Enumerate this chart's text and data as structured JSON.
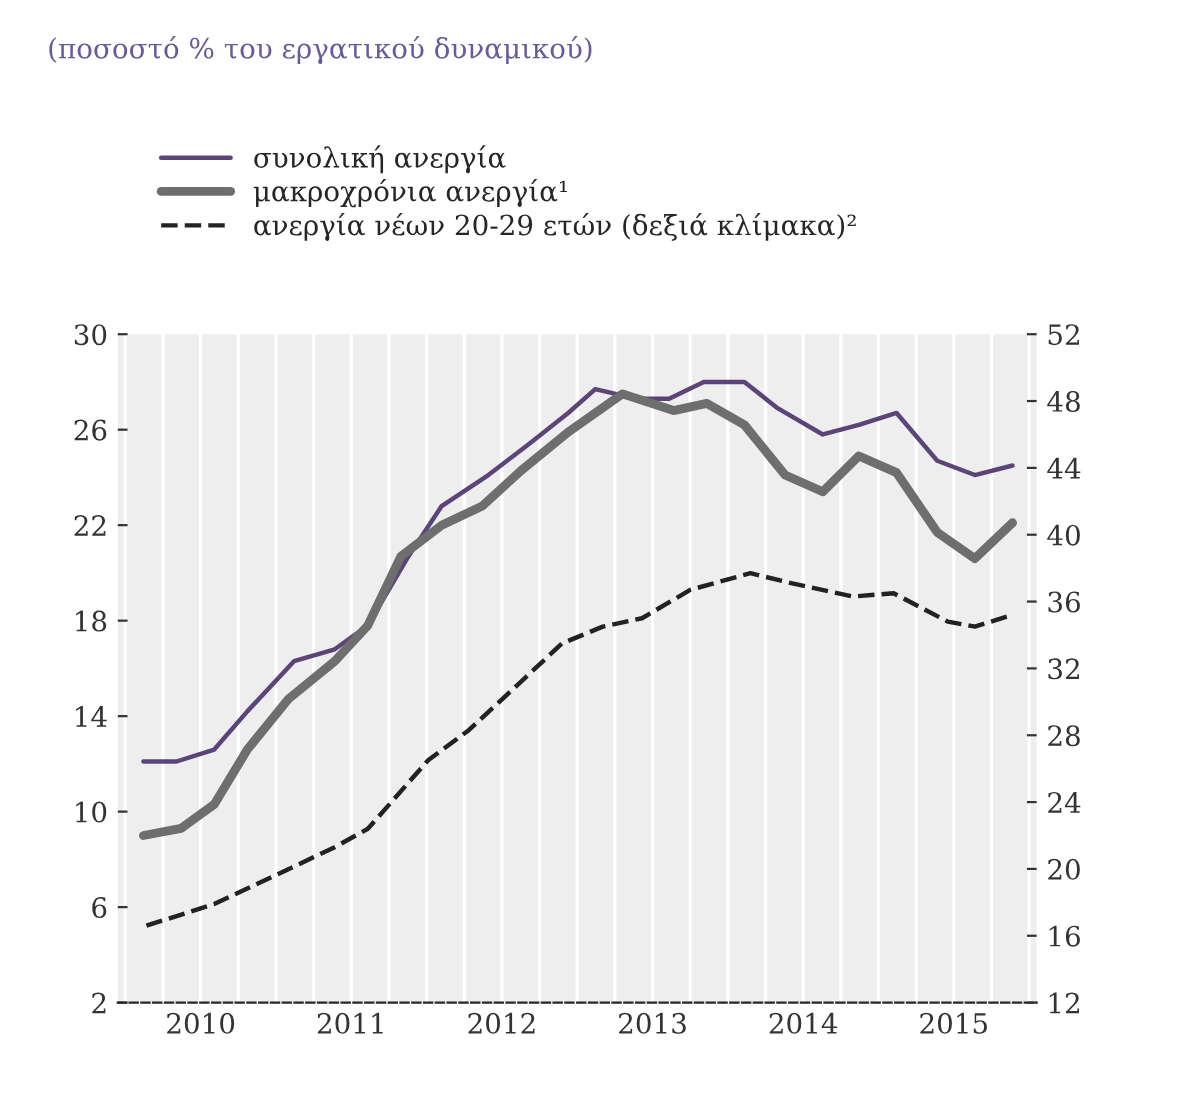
{
  "chart_data": {
    "type": "line",
    "title": "(ποσοστό % του εργατικού δυναμικού)",
    "xlim": [
      2009.95,
      2016.05
    ],
    "xticks": [
      {
        "value": 2010.0,
        "label": null
      },
      {
        "value": 2010.25,
        "label": null
      },
      {
        "value": 2010.5,
        "label": "2010"
      },
      {
        "value": 2010.75,
        "label": null
      },
      {
        "value": 2011.0,
        "label": null
      },
      {
        "value": 2011.25,
        "label": null
      },
      {
        "value": 2011.5,
        "label": "2011"
      },
      {
        "value": 2011.75,
        "label": null
      },
      {
        "value": 2012.0,
        "label": null
      },
      {
        "value": 2012.25,
        "label": null
      },
      {
        "value": 2012.5,
        "label": "2012"
      },
      {
        "value": 2012.75,
        "label": null
      },
      {
        "value": 2013.0,
        "label": null
      },
      {
        "value": 2013.25,
        "label": null
      },
      {
        "value": 2013.5,
        "label": "2013"
      },
      {
        "value": 2013.75,
        "label": null
      },
      {
        "value": 2014.0,
        "label": null
      },
      {
        "value": 2014.25,
        "label": null
      },
      {
        "value": 2014.5,
        "label": "2014"
      },
      {
        "value": 2014.75,
        "label": null
      },
      {
        "value": 2015.0,
        "label": null
      },
      {
        "value": 2015.25,
        "label": null
      },
      {
        "value": 2015.5,
        "label": "2015"
      },
      {
        "value": 2015.75,
        "label": null
      },
      {
        "value": 2016.0,
        "label": null
      }
    ],
    "ylim": [
      2,
      30
    ],
    "yticks": [
      2,
      6,
      10,
      14,
      18,
      22,
      26,
      30
    ],
    "y2lim": [
      12,
      52
    ],
    "y2ticks": [
      12,
      16,
      20,
      24,
      28,
      32,
      36,
      40,
      44,
      48,
      52
    ],
    "grid": "x",
    "legend": "top left",
    "line_style": "solid",
    "series": [
      {
        "name": "συνολική ανεργία",
        "color": "#5b4478",
        "x": [
          2010.12,
          2010.34,
          2010.59,
          2010.81,
          2011.12,
          2011.39,
          2011.61,
          2011.88,
          2012.1,
          2012.41,
          2012.68,
          2012.94,
          2013.12,
          2013.39,
          2013.61,
          2013.84,
          2014.11,
          2014.33,
          2014.63,
          2014.87,
          2015.12,
          2015.39,
          2015.64,
          2015.89
        ],
        "values": [
          12.1,
          12.1,
          12.6,
          14.2,
          16.3,
          16.8,
          17.8,
          20.7,
          22.8,
          24.1,
          25.4,
          26.7,
          27.7,
          27.3,
          27.3,
          28.0,
          28.0,
          26.9,
          25.8,
          26.2,
          26.7,
          24.7,
          24.1,
          24.5
        ]
      },
      {
        "name": "μακροχρόνια ανεργία¹",
        "color": "#6e6e6e",
        "x": [
          2010.12,
          2010.37,
          2010.59,
          2010.81,
          2011.08,
          2011.39,
          2011.61,
          2011.83,
          2012.1,
          2012.37,
          2012.63,
          2012.94,
          2013.3,
          2013.64,
          2013.86,
          2014.11,
          2014.38,
          2014.63,
          2014.87,
          2015.12,
          2015.39,
          2015.64,
          2015.89
        ],
        "values": [
          9.0,
          9.3,
          10.3,
          12.6,
          14.7,
          16.3,
          17.8,
          20.7,
          22.0,
          22.8,
          24.3,
          25.9,
          27.5,
          26.8,
          27.1,
          26.2,
          24.1,
          23.4,
          24.9,
          24.2,
          21.7,
          20.6,
          22.1
        ]
      },
      {
        "name": "ανεργία νέων 20-29 ετών (δεξιά κλίμακα)²",
        "color": "#222222",
        "axis": "y2",
        "line_style": "dashed",
        "x": [
          2010.14,
          2010.59,
          2011.04,
          2011.39,
          2011.61,
          2012.01,
          2012.28,
          2012.59,
          2012.9,
          2013.17,
          2013.43,
          2013.75,
          2014.15,
          2014.42,
          2014.83,
          2015.1,
          2015.46,
          2015.64,
          2015.89
        ],
        "values": [
          16.6,
          17.9,
          19.8,
          21.3,
          22.4,
          26.5,
          28.3,
          30.9,
          33.5,
          34.5,
          35.0,
          36.7,
          37.7,
          37.1,
          36.3,
          36.5,
          34.8,
          34.5,
          35.2
        ]
      }
    ]
  }
}
